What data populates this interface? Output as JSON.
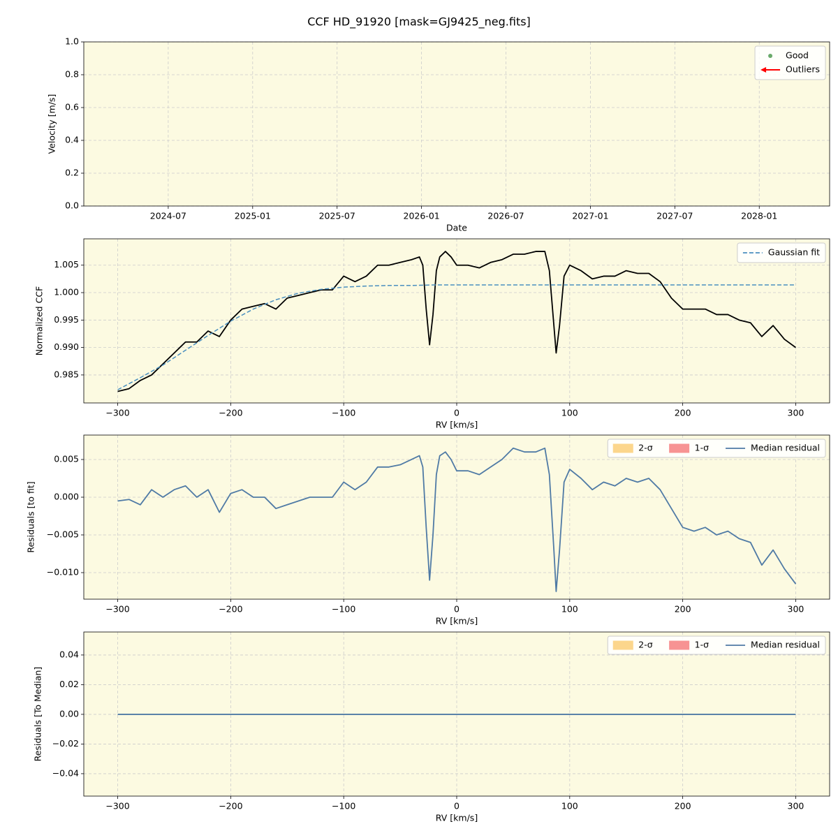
{
  "title": "CCF HD_91920 [mask=GJ9425_neg.fits]",
  "chart_data": [
    {
      "type": "scatter",
      "x_label": "Date",
      "y_label": "Velocity [m/s]",
      "background": "#fcfae1",
      "grid": true,
      "legend": "upper right",
      "xlim": [
        "2024-01",
        "2028-06"
      ],
      "xticks": [
        "2024-07",
        "2025-01",
        "2025-07",
        "2026-01",
        "2026-07",
        "2027-01",
        "2027-07",
        "2028-01"
      ],
      "ylim": [
        0,
        1
      ],
      "yticks": [
        {
          "value": 0,
          "label": "0.0"
        },
        0.2,
        0.4,
        0.6,
        0.8,
        {
          "value": 1,
          "label": "1.0"
        }
      ],
      "series": [
        {
          "name": "Good",
          "color": "#6aaa6a",
          "marker": "o",
          "x": [],
          "values": []
        },
        {
          "name": "Outliers",
          "color": "#ff0000",
          "marker": "arrow",
          "x": [],
          "values": []
        }
      ]
    },
    {
      "type": "line",
      "x_label": "RV [km/s]",
      "y_label": "Normalized CCF",
      "background": "#fcfae1",
      "grid": true,
      "legend": "upper right",
      "xlim": [
        -330,
        330
      ],
      "xticks": [
        {
          "value": -300,
          "label": "−300"
        },
        {
          "value": -200,
          "label": "−200"
        },
        {
          "value": -100,
          "label": "−100"
        },
        0,
        100,
        200,
        300
      ],
      "ylim": [
        0.9799,
        1.0098
      ],
      "yticks": [
        0.985,
        {
          "value": 0.99,
          "label": "0.990"
        },
        0.995,
        {
          "value": 1,
          "label": "1.000"
        },
        1.005
      ],
      "series": [
        {
          "color": "#000000",
          "style": "solid",
          "x": [
            -300,
            -290,
            -280,
            -270,
            -260,
            -250,
            -240,
            -230,
            -220,
            -210,
            -200,
            -190,
            -180,
            -170,
            -160,
            -150,
            -140,
            -130,
            -120,
            -110,
            -100,
            -90,
            -80,
            -70,
            -60,
            -50,
            -40,
            -33,
            -30,
            -27,
            -24,
            -21,
            -18,
            -15,
            -10,
            -5,
            0,
            10,
            20,
            30,
            40,
            50,
            60,
            70,
            78,
            82,
            86,
            88,
            91,
            95,
            100,
            110,
            120,
            130,
            140,
            150,
            160,
            170,
            180,
            190,
            200,
            210,
            220,
            230,
            240,
            250,
            260,
            270,
            280,
            290,
            300
          ],
          "values": [
            0.982,
            0.9825,
            0.984,
            0.985,
            0.987,
            0.989,
            0.991,
            0.991,
            0.993,
            0.992,
            0.995,
            0.997,
            0.9975,
            0.998,
            0.997,
            0.999,
            0.9995,
            1.0,
            1.0005,
            1.0005,
            1.003,
            1.002,
            1.003,
            1.005,
            1.005,
            1.0055,
            1.006,
            1.0065,
            1.005,
            0.997,
            0.9905,
            0.996,
            1.004,
            1.0065,
            1.0075,
            1.0065,
            1.005,
            1.005,
            1.0045,
            1.0055,
            1.006,
            1.007,
            1.007,
            1.0075,
            1.0075,
            1.004,
            0.994,
            0.989,
            0.994,
            1.003,
            1.005,
            1.004,
            1.0025,
            1.003,
            1.003,
            1.004,
            1.0035,
            1.0035,
            1.002,
            0.999,
            0.997,
            0.997,
            0.997,
            0.996,
            0.996,
            0.995,
            0.9945,
            0.992,
            0.994,
            0.9915,
            0.99
          ]
        },
        {
          "name": "Gaussian fit",
          "color": "#4a8fbf",
          "style": "dashed",
          "x": [
            -300,
            -280,
            -260,
            -240,
            -220,
            -200,
            -180,
            -160,
            -140,
            -120,
            -100,
            -80,
            -60,
            -40,
            -20,
            0,
            20,
            40,
            60,
            80,
            100,
            120,
            140,
            160,
            180,
            200,
            220,
            240,
            260,
            280,
            300
          ],
          "values": [
            0.9823,
            0.9845,
            0.9868,
            0.9895,
            0.9922,
            0.9948,
            0.997,
            0.9987,
            0.9999,
            1.0006,
            1.001,
            1.0012,
            1.0013,
            1.0013,
            1.0014,
            1.0014,
            1.0014,
            1.0014,
            1.0014,
            1.0014,
            1.0014,
            1.0014,
            1.0014,
            1.0014,
            1.0014,
            1.0014,
            1.0014,
            1.0014,
            1.0014,
            1.0014,
            1.0014
          ]
        }
      ]
    },
    {
      "type": "line",
      "x_label": "RV [km/s]",
      "y_label": "Residuals [to fit]",
      "background": "#fcfae1",
      "grid": true,
      "legend": "upper right",
      "xlim": [
        -330,
        330
      ],
      "xticks": [
        {
          "value": -300,
          "label": "−300"
        },
        {
          "value": -200,
          "label": "−200"
        },
        {
          "value": -100,
          "label": "−100"
        },
        0,
        100,
        200,
        300
      ],
      "ylim": [
        -0.01352,
        0.00824
      ],
      "yticks": [
        {
          "value": -0.01,
          "label": "−0.010"
        },
        {
          "value": -0.005,
          "label": "−0.005"
        },
        {
          "value": 0,
          "label": "0.000"
        },
        0.005
      ],
      "series": [
        {
          "name": "2-σ",
          "color": "#fcd68c",
          "kind": "band",
          "x": [],
          "values": []
        },
        {
          "name": "1-σ",
          "color": "#f79393",
          "kind": "band",
          "x": [],
          "values": []
        },
        {
          "name": "Median residual",
          "color": "#4f7aa5",
          "style": "solid",
          "x": [
            -300,
            -290,
            -280,
            -270,
            -260,
            -250,
            -240,
            -230,
            -220,
            -210,
            -200,
            -190,
            -180,
            -170,
            -160,
            -150,
            -140,
            -130,
            -120,
            -110,
            -100,
            -90,
            -80,
            -70,
            -60,
            -50,
            -40,
            -33,
            -30,
            -27,
            -24,
            -21,
            -18,
            -15,
            -10,
            -5,
            0,
            10,
            20,
            30,
            40,
            50,
            60,
            70,
            78,
            82,
            86,
            88,
            91,
            95,
            100,
            110,
            120,
            130,
            140,
            150,
            160,
            170,
            180,
            190,
            200,
            210,
            220,
            230,
            240,
            250,
            260,
            270,
            280,
            290,
            300
          ],
          "values": [
            -0.0005,
            -0.0003,
            -0.001,
            0.001,
            0.0,
            0.001,
            0.0015,
            0.0,
            0.001,
            -0.002,
            0.0005,
            0.001,
            0.0,
            0.0,
            -0.0015,
            -0.001,
            -0.0005,
            0.0,
            0.0,
            0.0,
            0.002,
            0.001,
            0.002,
            0.004,
            0.004,
            0.0043,
            0.005,
            0.0055,
            0.004,
            -0.004,
            -0.011,
            -0.005,
            0.003,
            0.0055,
            0.006,
            0.005,
            0.0035,
            0.0035,
            0.003,
            0.004,
            0.005,
            0.0065,
            0.006,
            0.006,
            0.0065,
            0.003,
            -0.007,
            -0.0125,
            -0.007,
            0.002,
            0.0037,
            0.0025,
            0.001,
            0.002,
            0.0015,
            0.0025,
            0.002,
            0.0025,
            0.001,
            -0.0015,
            -0.004,
            -0.0045,
            -0.004,
            -0.005,
            -0.0045,
            -0.0055,
            -0.006,
            -0.009,
            -0.007,
            -0.0095,
            -0.0115
          ]
        }
      ]
    },
    {
      "type": "line",
      "x_label": "RV [km/s]",
      "y_label": "Residuals [To Median]",
      "background": "#fcfae1",
      "grid": true,
      "legend": "upper right",
      "xlim": [
        -330,
        330
      ],
      "xticks": [
        {
          "value": -300,
          "label": "−300"
        },
        {
          "value": -200,
          "label": "−200"
        },
        {
          "value": -100,
          "label": "−100"
        },
        0,
        100,
        200,
        300
      ],
      "ylim": [
        -0.0551,
        0.0555
      ],
      "yticks": [
        {
          "value": -0.04,
          "label": "−0.04"
        },
        {
          "value": -0.02,
          "label": "−0.02"
        },
        {
          "value": 0,
          "label": "0.00"
        },
        0.02,
        0.04
      ],
      "series": [
        {
          "name": "2-σ",
          "color": "#fcd68c",
          "kind": "band",
          "x": [],
          "values": []
        },
        {
          "name": "1-σ",
          "color": "#f79393",
          "kind": "band",
          "x": [],
          "values": []
        },
        {
          "name": "Median residual",
          "color": "#4f7aa5",
          "style": "solid",
          "x": [
            -300,
            300
          ],
          "values": [
            0,
            0
          ]
        }
      ]
    }
  ]
}
